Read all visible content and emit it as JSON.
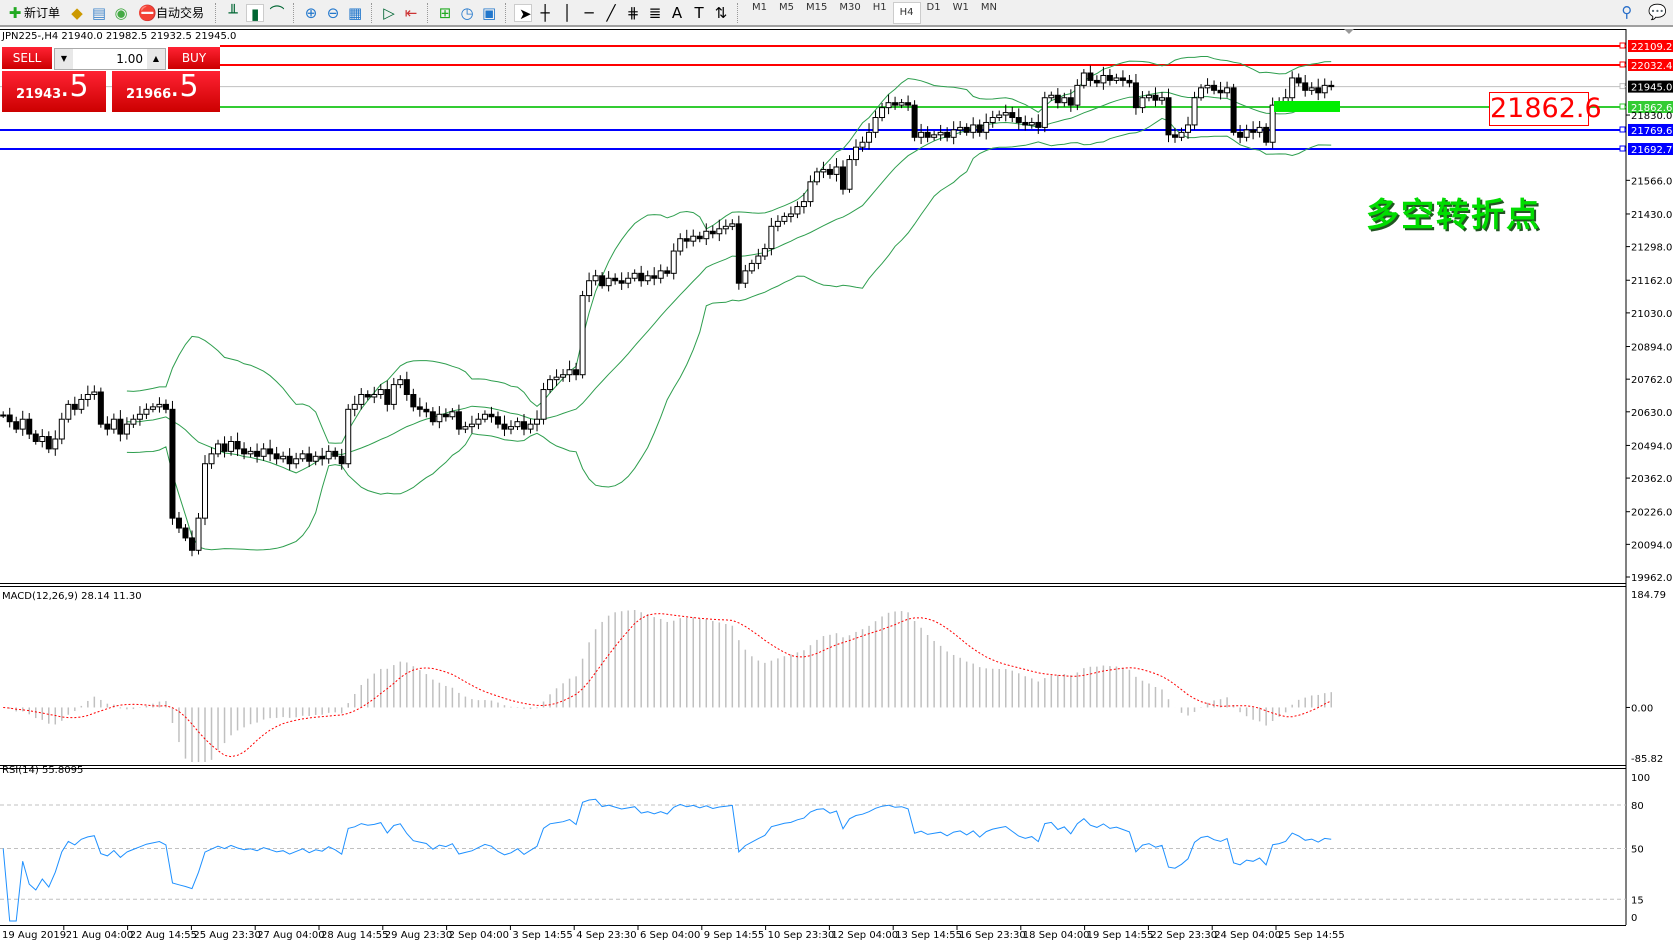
{
  "toolbar": {
    "new_order": "新订单",
    "auto_trading": "自动交易",
    "icons": [
      "new-order-icon",
      "market-watch-icon",
      "navigator-icon",
      "signals-icon",
      "auto-trading-icon",
      "bar-chart-icon",
      "candle-chart-icon",
      "line-chart-icon",
      "zoom-in-icon",
      "zoom-out-icon",
      "tile-windows-icon",
      "autoscroll-icon",
      "chart-shift-icon",
      "indicators-icon",
      "periods-icon",
      "templates-icon",
      "cursor-icon",
      "crosshair-icon",
      "vertical-line-icon",
      "horizontal-line-icon",
      "trendline-icon",
      "equidistant-channel-icon",
      "fibonacci-icon",
      "text-icon",
      "text-label-icon",
      "arrows-icon",
      "search-icon",
      "chat-icon"
    ],
    "timeframes": [
      "M1",
      "M5",
      "M15",
      "M30",
      "H1",
      "H4",
      "D1",
      "W1",
      "MN"
    ],
    "active_timeframe": "H4"
  },
  "chart_header": "JPN225-,H4  21940.0 21982.5 21932.5 21945.0",
  "trade_panel": {
    "sell_label": "SELL",
    "buy_label": "BUY",
    "lot": "1.00",
    "sell_main": "21943",
    "sell_pips": ".5",
    "buy_main": "21966",
    "buy_pips": ".5"
  },
  "annotation_text": "多空转折点",
  "annotation_price": "21862.6",
  "colors": {
    "up_line": "#ff0000",
    "support": "#0000ff",
    "pivot": "#33cc33",
    "bands": "#2e9e4e",
    "macd_signal": "#ff0000",
    "rsi": "#1e90ff"
  },
  "price_axis": [
    "22109.2",
    "22032.4",
    "21945.0",
    "21862.6",
    "21830.0",
    "21769.6",
    "21692.7",
    "21566.0",
    "21430.0",
    "21298.0",
    "21162.0",
    "21030.0",
    "20894.0",
    "20762.0",
    "20630.0",
    "20494.0",
    "20362.0",
    "20226.0",
    "20094.0",
    "19962.0"
  ],
  "macd": {
    "title": "MACD(12,26,9) 28.14 11.30",
    "axis": [
      "184.79",
      "0.00",
      "-85.82"
    ]
  },
  "rsi": {
    "title": "RSI(14) 55.8095",
    "axis": [
      "100",
      "80",
      "50",
      "15",
      "0"
    ]
  },
  "time_axis": [
    "19 Aug 2019",
    "21 Aug 04:00",
    "22 Aug 14:55",
    "25 Aug 23:30",
    "27 Aug 04:00",
    "28 Aug 14:55",
    "29 Aug 23:30",
    "2 Sep 04:00",
    "3 Sep 14:55",
    "4 Sep 23:30",
    "6 Sep 04:00",
    "9 Sep 14:55",
    "10 Sep 23:30",
    "12 Sep 04:00",
    "13 Sep 14:55",
    "16 Sep 23:30",
    "18 Sep 04:00",
    "19 Sep 14:55",
    "22 Sep 23:30",
    "24 Sep 04:00",
    "25 Sep 14:55"
  ],
  "chart_data": {
    "type": "candlestick",
    "symbol": "JPN225-",
    "timeframe": "H4",
    "ylim": [
      19962.0,
      22109.2
    ],
    "indicators": [
      "Bollinger Bands",
      "MACD(12,26,9)",
      "RSI(14)"
    ],
    "horizontal_levels": [
      {
        "price": 22109.2,
        "color": "#ff0000"
      },
      {
        "price": 22032.4,
        "color": "#ff0000"
      },
      {
        "price": 21945.0,
        "color": "#c0c0c0"
      },
      {
        "price": 21862.6,
        "color": "#33cc33"
      },
      {
        "price": 21769.6,
        "color": "#0000ff"
      },
      {
        "price": 21692.7,
        "color": "#0000ff"
      }
    ],
    "closes": [
      20617,
      20590,
      20560,
      20600,
      20540,
      20510,
      20530,
      20480,
      20520,
      20600,
      20660,
      20640,
      20680,
      20700,
      20710,
      20580,
      20560,
      20600,
      20540,
      20580,
      20600,
      20620,
      20640,
      20650,
      20660,
      20640,
      20200,
      20160,
      20120,
      20070,
      20200,
      20420,
      20460,
      20500,
      20470,
      20510,
      20480,
      20460,
      20470,
      20450,
      20480,
      20460,
      20440,
      20450,
      20420,
      20440,
      20460,
      20430,
      20450,
      20440,
      20470,
      20450,
      20420,
      20640,
      20660,
      20700,
      20690,
      20700,
      20720,
      20660,
      20740,
      20760,
      20700,
      20650,
      20640,
      20630,
      20590,
      20620,
      20610,
      20630,
      20560,
      20570,
      20580,
      20600,
      20620,
      20610,
      20580,
      20560,
      20570,
      20590,
      20560,
      20580,
      20600,
      20720,
      20760,
      20770,
      20780,
      20800,
      20780,
      21100,
      21160,
      21180,
      21140,
      21170,
      21160,
      21150,
      21170,
      21190,
      21160,
      21180,
      21170,
      21200,
      21190,
      21280,
      21330,
      21320,
      21340,
      21330,
      21360,
      21350,
      21370,
      21380,
      21390,
      21150,
      21200,
      21230,
      21260,
      21290,
      21380,
      21400,
      21420,
      21430,
      21460,
      21480,
      21560,
      21600,
      21610,
      21590,
      21620,
      21530,
      21650,
      21700,
      21720,
      21760,
      21820,
      21860,
      21880,
      21870,
      21880,
      21870,
      21740,
      21760,
      21740,
      21750,
      21760,
      21740,
      21770,
      21780,
      21760,
      21790,
      21760,
      21800,
      21820,
      21830,
      21840,
      21820,
      21800,
      21790,
      21800,
      21780,
      21900,
      21910,
      21880,
      21900,
      21870,
      21950,
      22000,
      21970,
      21960,
      21990,
      21970,
      21980,
      21970,
      21960,
      21860,
      21900,
      21910,
      21890,
      21900,
      21750,
      21740,
      21760,
      21790,
      21900,
      21940,
      21950,
      21930,
      21920,
      21940,
      21760,
      21740,
      21770,
      21760,
      21780,
      21720,
      21870,
      21880,
      21900,
      21980,
      21960,
      21930,
      21940,
      21920,
      21950,
      21945
    ]
  }
}
